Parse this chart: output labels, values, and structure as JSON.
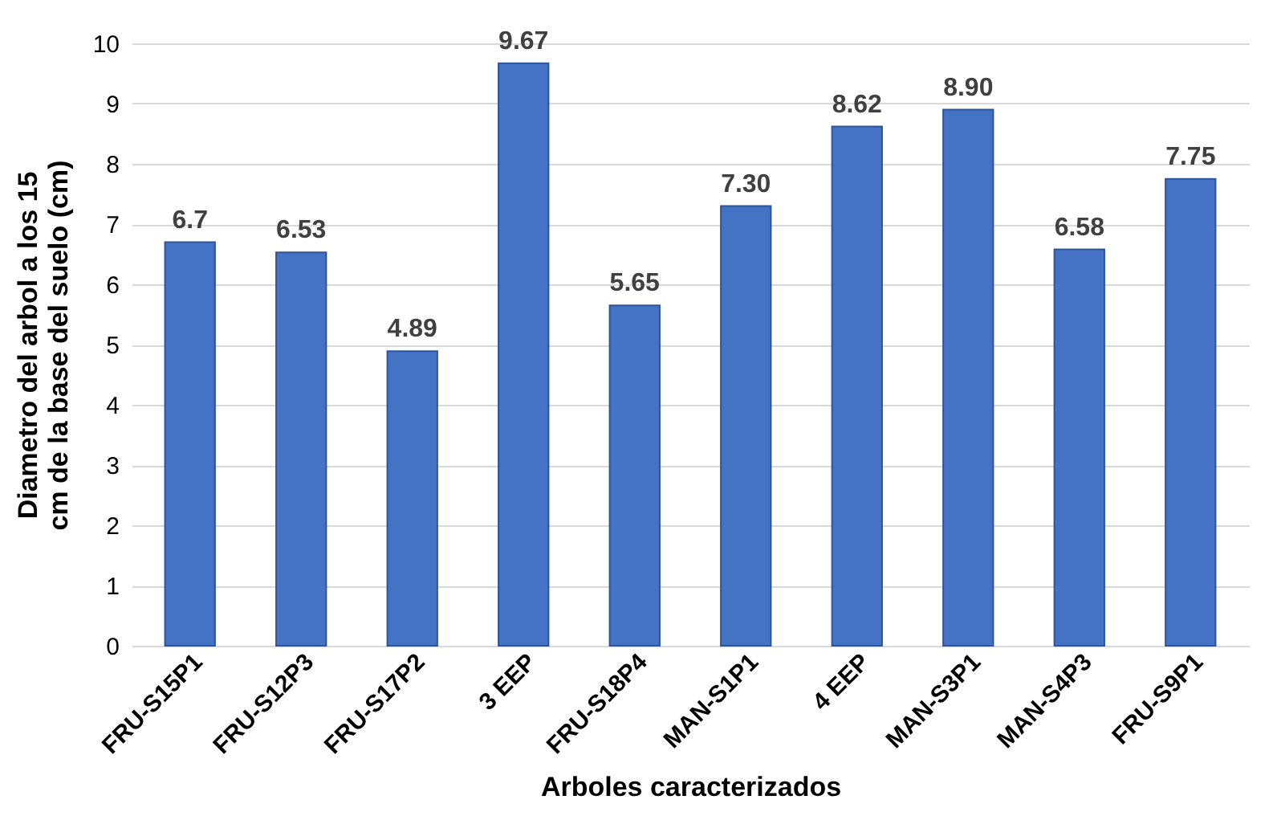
{
  "chart_data": {
    "type": "bar",
    "xlabel": "Arboles caracterizados",
    "ylabel": "Diametro del arbol a los 15 cm de la base del suelo (cm)",
    "categories": [
      "FRU-S15P1",
      "FRU-S12P3",
      "FRU-S17P2",
      "3 EEP",
      "FRU-S18P4",
      "MAN-S1P1",
      "4 EEP",
      "MAN-S3P1",
      "MAN-S4P3",
      "FRU-S9P1"
    ],
    "values": [
      6.7,
      6.53,
      4.89,
      9.67,
      5.65,
      7.3,
      8.62,
      8.9,
      6.58,
      7.75
    ],
    "value_labels": [
      "6.7",
      "6.53",
      "4.89",
      "9.67",
      "5.65",
      "7.30",
      "8.62",
      "8.90",
      "6.58",
      "7.75"
    ],
    "color": "#4472c4",
    "ylim": [
      0,
      10
    ],
    "yticks": [
      0,
      1,
      2,
      3,
      4,
      5,
      6,
      7,
      8,
      9,
      10
    ],
    "grid": "y"
  }
}
